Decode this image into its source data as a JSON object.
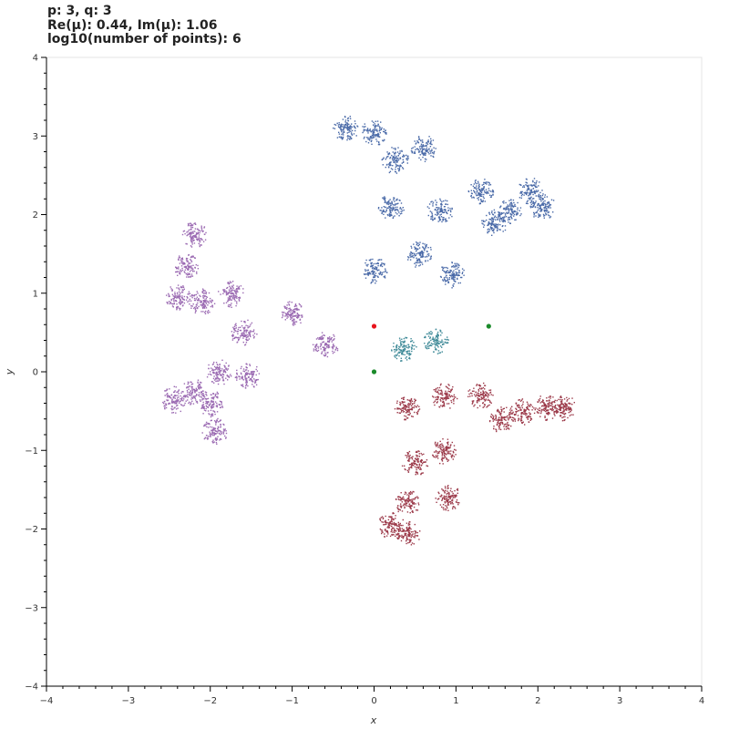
{
  "title": {
    "line1": "p: 3, q: 3",
    "line2": "Re(μ): 0.44, Im(μ): 1.06",
    "line3": "log10(number of points): 6"
  },
  "chart_data": {
    "type": "scatter",
    "xlabel": "x",
    "ylabel": "y",
    "xlim": [
      -4,
      4
    ],
    "ylim": [
      -4,
      4
    ],
    "xticks": [
      "−4",
      "−3",
      "−2",
      "−1",
      "0",
      "1",
      "2",
      "3",
      "4"
    ],
    "yticks": [
      "−4",
      "−3",
      "−2",
      "−1",
      "0",
      "1",
      "2",
      "3",
      "4"
    ],
    "grid": false,
    "series": [
      {
        "color": "#4a6aa8",
        "description_pts": "fractal cluster (upper, blue)",
        "clusters": [
          [
            0.0,
            1.3
          ],
          [
            0.55,
            1.5
          ],
          [
            0.95,
            1.25
          ],
          [
            0.2,
            2.1
          ],
          [
            0.8,
            2.05
          ],
          [
            0.25,
            2.7
          ],
          [
            0.6,
            2.85
          ],
          [
            1.3,
            2.3
          ],
          [
            1.45,
            1.9
          ],
          [
            1.65,
            2.05
          ],
          [
            1.9,
            2.3
          ],
          [
            2.05,
            2.1
          ],
          [
            0.0,
            3.05
          ],
          [
            -0.35,
            3.1
          ]
        ]
      },
      {
        "color": "#9b6ab2",
        "description_pts": "fractal cluster (left, purple)",
        "clusters": [
          [
            -1.0,
            0.75
          ],
          [
            -0.6,
            0.35
          ],
          [
            -1.6,
            0.5
          ],
          [
            -1.75,
            1.0
          ],
          [
            -2.1,
            0.9
          ],
          [
            -2.4,
            0.95
          ],
          [
            -2.3,
            1.35
          ],
          [
            -2.2,
            1.75
          ],
          [
            -1.55,
            -0.05
          ],
          [
            -1.9,
            0.0
          ],
          [
            -2.0,
            -0.4
          ],
          [
            -2.2,
            -0.25
          ],
          [
            -2.45,
            -0.35
          ],
          [
            -1.95,
            -0.75
          ]
        ]
      },
      {
        "color": "#9c3a4a",
        "description_pts": "fractal cluster (lower right, red)",
        "clusters": [
          [
            0.4,
            -0.45
          ],
          [
            0.85,
            -0.3
          ],
          [
            1.3,
            -0.3
          ],
          [
            1.55,
            -0.6
          ],
          [
            0.85,
            -1.0
          ],
          [
            0.5,
            -1.15
          ],
          [
            0.4,
            -1.65
          ],
          [
            0.9,
            -1.6
          ],
          [
            0.4,
            -2.05
          ],
          [
            0.2,
            -1.95
          ],
          [
            1.8,
            -0.5
          ],
          [
            2.1,
            -0.45
          ],
          [
            2.3,
            -0.45
          ]
        ]
      },
      {
        "color": "#3f8a98",
        "description_pts": "fractal cluster (center, teal)",
        "clusters": [
          [
            0.35,
            0.3
          ],
          [
            0.75,
            0.4
          ]
        ]
      }
    ],
    "markers": [
      {
        "x": 0.0,
        "y": 0.58,
        "color": "#e8141c"
      },
      {
        "x": 1.4,
        "y": 0.58,
        "color": "#1a8a2a"
      },
      {
        "x": 0.0,
        "y": 0.0,
        "color": "#1a8a2a"
      }
    ]
  }
}
